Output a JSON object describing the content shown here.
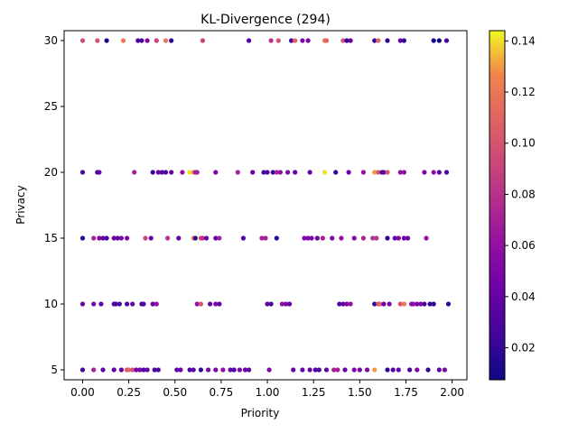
{
  "chart_data": {
    "type": "scatter",
    "title": "KL-Divergence (294)",
    "xlabel": "Priority",
    "ylabel": "Privacy",
    "xlim": [
      -0.1,
      2.08
    ],
    "ylim": [
      4.25,
      30.75
    ],
    "xticks": [
      0.0,
      0.25,
      0.5,
      0.75,
      1.0,
      1.25,
      1.5,
      1.75,
      2.0
    ],
    "xtick_labels": [
      "0.00",
      "0.25",
      "0.50",
      "0.75",
      "1.00",
      "1.25",
      "1.50",
      "1.75",
      "2.00"
    ],
    "yticks": [
      5,
      10,
      15,
      20,
      25,
      30
    ],
    "ytick_labels": [
      "5",
      "10",
      "15",
      "20",
      "25",
      "30"
    ],
    "grid": false,
    "colormap": "plasma",
    "colorbar": {
      "vmin": 0.0075,
      "vmax": 0.144,
      "ticks": [
        0.02,
        0.04,
        0.06,
        0.08,
        0.1,
        0.12,
        0.14
      ],
      "tick_labels": [
        "0.02",
        "0.04",
        "0.06",
        "0.08",
        "0.10",
        "0.12",
        "0.14"
      ]
    },
    "points": [
      {
        "x": 0.0,
        "y": 30,
        "c": 0.095
      },
      {
        "x": 0.08,
        "y": 30,
        "c": 0.1
      },
      {
        "x": 0.13,
        "y": 30,
        "c": 0.01
      },
      {
        "x": 0.22,
        "y": 30,
        "c": 0.12
      },
      {
        "x": 0.3,
        "y": 30,
        "c": 0.03
      },
      {
        "x": 0.32,
        "y": 30,
        "c": 0.03
      },
      {
        "x": 0.35,
        "y": 30,
        "c": 0.05
      },
      {
        "x": 0.4,
        "y": 30,
        "c": 0.09
      },
      {
        "x": 0.45,
        "y": 30,
        "c": 0.12
      },
      {
        "x": 0.48,
        "y": 30,
        "c": 0.02
      },
      {
        "x": 0.65,
        "y": 30,
        "c": 0.09
      },
      {
        "x": 0.9,
        "y": 30,
        "c": 0.03
      },
      {
        "x": 1.02,
        "y": 30,
        "c": 0.08
      },
      {
        "x": 1.06,
        "y": 30,
        "c": 0.1
      },
      {
        "x": 1.13,
        "y": 30,
        "c": 0.03
      },
      {
        "x": 1.15,
        "y": 30,
        "c": 0.11
      },
      {
        "x": 1.19,
        "y": 30,
        "c": 0.05
      },
      {
        "x": 1.22,
        "y": 30,
        "c": 0.05
      },
      {
        "x": 1.31,
        "y": 30,
        "c": 0.12
      },
      {
        "x": 1.32,
        "y": 30,
        "c": 0.11
      },
      {
        "x": 1.41,
        "y": 30,
        "c": 0.1
      },
      {
        "x": 1.43,
        "y": 30,
        "c": 0.02
      },
      {
        "x": 1.45,
        "y": 30,
        "c": 0.04
      },
      {
        "x": 1.58,
        "y": 30,
        "c": 0.02
      },
      {
        "x": 1.6,
        "y": 30,
        "c": 0.11
      },
      {
        "x": 1.65,
        "y": 30,
        "c": 0.02
      },
      {
        "x": 1.72,
        "y": 30,
        "c": 0.04
      },
      {
        "x": 1.74,
        "y": 30,
        "c": 0.02
      },
      {
        "x": 1.9,
        "y": 30,
        "c": 0.01
      },
      {
        "x": 1.93,
        "y": 30,
        "c": 0.01
      },
      {
        "x": 1.97,
        "y": 30,
        "c": 0.03
      },
      {
        "x": 0.0,
        "y": 20,
        "c": 0.03
      },
      {
        "x": 0.08,
        "y": 20,
        "c": 0.03
      },
      {
        "x": 0.09,
        "y": 20,
        "c": 0.04
      },
      {
        "x": 0.28,
        "y": 20,
        "c": 0.07
      },
      {
        "x": 0.38,
        "y": 20,
        "c": 0.02
      },
      {
        "x": 0.41,
        "y": 20,
        "c": 0.04
      },
      {
        "x": 0.43,
        "y": 20,
        "c": 0.03
      },
      {
        "x": 0.45,
        "y": 20,
        "c": 0.03
      },
      {
        "x": 0.48,
        "y": 20,
        "c": 0.04
      },
      {
        "x": 0.54,
        "y": 20,
        "c": 0.06
      },
      {
        "x": 0.58,
        "y": 20,
        "c": 0.14
      },
      {
        "x": 0.6,
        "y": 20,
        "c": 0.13
      },
      {
        "x": 0.61,
        "y": 20,
        "c": 0.07
      },
      {
        "x": 0.62,
        "y": 20,
        "c": 0.07
      },
      {
        "x": 0.72,
        "y": 20,
        "c": 0.05
      },
      {
        "x": 0.84,
        "y": 20,
        "c": 0.07
      },
      {
        "x": 0.92,
        "y": 20,
        "c": 0.04
      },
      {
        "x": 0.98,
        "y": 20,
        "c": 0.03
      },
      {
        "x": 1.0,
        "y": 20,
        "c": 0.03
      },
      {
        "x": 1.03,
        "y": 20,
        "c": 0.02
      },
      {
        "x": 1.05,
        "y": 20,
        "c": 0.07
      },
      {
        "x": 1.07,
        "y": 20,
        "c": 0.06
      },
      {
        "x": 1.11,
        "y": 20,
        "c": 0.05
      },
      {
        "x": 1.15,
        "y": 20,
        "c": 0.04
      },
      {
        "x": 1.23,
        "y": 20,
        "c": 0.04
      },
      {
        "x": 1.31,
        "y": 20,
        "c": 0.14
      },
      {
        "x": 1.37,
        "y": 20,
        "c": 0.02
      },
      {
        "x": 1.44,
        "y": 20,
        "c": 0.04
      },
      {
        "x": 1.52,
        "y": 20,
        "c": 0.06
      },
      {
        "x": 1.58,
        "y": 20,
        "c": 0.13
      },
      {
        "x": 1.6,
        "y": 20,
        "c": 0.1
      },
      {
        "x": 1.62,
        "y": 20,
        "c": 0.03
      },
      {
        "x": 1.63,
        "y": 20,
        "c": 0.03
      },
      {
        "x": 1.65,
        "y": 20,
        "c": 0.1
      },
      {
        "x": 1.72,
        "y": 20,
        "c": 0.06
      },
      {
        "x": 1.74,
        "y": 20,
        "c": 0.06
      },
      {
        "x": 1.85,
        "y": 20,
        "c": 0.05
      },
      {
        "x": 1.9,
        "y": 20,
        "c": 0.06
      },
      {
        "x": 1.93,
        "y": 20,
        "c": 0.04
      },
      {
        "x": 1.97,
        "y": 20,
        "c": 0.03
      },
      {
        "x": 0.0,
        "y": 15,
        "c": 0.02
      },
      {
        "x": 0.06,
        "y": 15,
        "c": 0.07
      },
      {
        "x": 0.09,
        "y": 15,
        "c": 0.05
      },
      {
        "x": 0.11,
        "y": 15,
        "c": 0.04
      },
      {
        "x": 0.13,
        "y": 15,
        "c": 0.03
      },
      {
        "x": 0.17,
        "y": 15,
        "c": 0.04
      },
      {
        "x": 0.19,
        "y": 15,
        "c": 0.04
      },
      {
        "x": 0.21,
        "y": 15,
        "c": 0.05
      },
      {
        "x": 0.24,
        "y": 15,
        "c": 0.05
      },
      {
        "x": 0.34,
        "y": 15,
        "c": 0.09
      },
      {
        "x": 0.37,
        "y": 15,
        "c": 0.04
      },
      {
        "x": 0.46,
        "y": 15,
        "c": 0.08
      },
      {
        "x": 0.52,
        "y": 15,
        "c": 0.04
      },
      {
        "x": 0.6,
        "y": 15,
        "c": 0.13
      },
      {
        "x": 0.61,
        "y": 15,
        "c": 0.02
      },
      {
        "x": 0.64,
        "y": 15,
        "c": 0.1
      },
      {
        "x": 0.65,
        "y": 15,
        "c": 0.08
      },
      {
        "x": 0.67,
        "y": 15,
        "c": 0.04
      },
      {
        "x": 0.72,
        "y": 15,
        "c": 0.04
      },
      {
        "x": 0.74,
        "y": 15,
        "c": 0.07
      },
      {
        "x": 0.87,
        "y": 15,
        "c": 0.03
      },
      {
        "x": 0.97,
        "y": 15,
        "c": 0.07
      },
      {
        "x": 0.99,
        "y": 15,
        "c": 0.07
      },
      {
        "x": 1.05,
        "y": 15,
        "c": 0.02
      },
      {
        "x": 1.2,
        "y": 15,
        "c": 0.05
      },
      {
        "x": 1.22,
        "y": 15,
        "c": 0.05
      },
      {
        "x": 1.24,
        "y": 15,
        "c": 0.05
      },
      {
        "x": 1.27,
        "y": 15,
        "c": 0.04
      },
      {
        "x": 1.3,
        "y": 15,
        "c": 0.07
      },
      {
        "x": 1.35,
        "y": 15,
        "c": 0.05
      },
      {
        "x": 1.4,
        "y": 15,
        "c": 0.06
      },
      {
        "x": 1.47,
        "y": 15,
        "c": 0.05
      },
      {
        "x": 1.52,
        "y": 15,
        "c": 0.07
      },
      {
        "x": 1.57,
        "y": 15,
        "c": 0.08
      },
      {
        "x": 1.59,
        "y": 15,
        "c": 0.08
      },
      {
        "x": 1.65,
        "y": 15,
        "c": 0.02
      },
      {
        "x": 1.69,
        "y": 15,
        "c": 0.04
      },
      {
        "x": 1.71,
        "y": 15,
        "c": 0.05
      },
      {
        "x": 1.74,
        "y": 15,
        "c": 0.04
      },
      {
        "x": 1.76,
        "y": 15,
        "c": 0.04
      },
      {
        "x": 1.86,
        "y": 15,
        "c": 0.06
      },
      {
        "x": 0.0,
        "y": 10,
        "c": 0.04
      },
      {
        "x": 0.06,
        "y": 10,
        "c": 0.05
      },
      {
        "x": 0.1,
        "y": 10,
        "c": 0.04
      },
      {
        "x": 0.17,
        "y": 10,
        "c": 0.03
      },
      {
        "x": 0.18,
        "y": 10,
        "c": 0.03
      },
      {
        "x": 0.2,
        "y": 10,
        "c": 0.03
      },
      {
        "x": 0.24,
        "y": 10,
        "c": 0.03
      },
      {
        "x": 0.27,
        "y": 10,
        "c": 0.04
      },
      {
        "x": 0.32,
        "y": 10,
        "c": 0.03
      },
      {
        "x": 0.33,
        "y": 10,
        "c": 0.03
      },
      {
        "x": 0.38,
        "y": 10,
        "c": 0.04
      },
      {
        "x": 0.4,
        "y": 10,
        "c": 0.06
      },
      {
        "x": 0.62,
        "y": 10,
        "c": 0.06
      },
      {
        "x": 0.64,
        "y": 10,
        "c": 0.1
      },
      {
        "x": 0.69,
        "y": 10,
        "c": 0.04
      },
      {
        "x": 0.72,
        "y": 10,
        "c": 0.05
      },
      {
        "x": 0.74,
        "y": 10,
        "c": 0.04
      },
      {
        "x": 1.0,
        "y": 10,
        "c": 0.04
      },
      {
        "x": 1.02,
        "y": 10,
        "c": 0.03
      },
      {
        "x": 1.08,
        "y": 10,
        "c": 0.06
      },
      {
        "x": 1.1,
        "y": 10,
        "c": 0.05
      },
      {
        "x": 1.12,
        "y": 10,
        "c": 0.04
      },
      {
        "x": 1.39,
        "y": 10,
        "c": 0.03
      },
      {
        "x": 1.41,
        "y": 10,
        "c": 0.04
      },
      {
        "x": 1.43,
        "y": 10,
        "c": 0.05
      },
      {
        "x": 1.45,
        "y": 10,
        "c": 0.06
      },
      {
        "x": 1.58,
        "y": 10,
        "c": 0.02
      },
      {
        "x": 1.6,
        "y": 10,
        "c": 0.1
      },
      {
        "x": 1.61,
        "y": 10,
        "c": 0.11
      },
      {
        "x": 1.63,
        "y": 10,
        "c": 0.04
      },
      {
        "x": 1.66,
        "y": 10,
        "c": 0.05
      },
      {
        "x": 1.72,
        "y": 10,
        "c": 0.1
      },
      {
        "x": 1.74,
        "y": 10,
        "c": 0.12
      },
      {
        "x": 1.78,
        "y": 10,
        "c": 0.06
      },
      {
        "x": 1.79,
        "y": 10,
        "c": 0.06
      },
      {
        "x": 1.81,
        "y": 10,
        "c": 0.05
      },
      {
        "x": 1.83,
        "y": 10,
        "c": 0.05
      },
      {
        "x": 1.85,
        "y": 10,
        "c": 0.03
      },
      {
        "x": 1.88,
        "y": 10,
        "c": 0.02
      },
      {
        "x": 1.9,
        "y": 10,
        "c": 0.02
      },
      {
        "x": 1.98,
        "y": 10,
        "c": 0.02
      },
      {
        "x": 0.0,
        "y": 5,
        "c": 0.03
      },
      {
        "x": 0.06,
        "y": 5,
        "c": 0.07
      },
      {
        "x": 0.11,
        "y": 5,
        "c": 0.04
      },
      {
        "x": 0.17,
        "y": 5,
        "c": 0.04
      },
      {
        "x": 0.21,
        "y": 5,
        "c": 0.04
      },
      {
        "x": 0.24,
        "y": 5,
        "c": 0.1
      },
      {
        "x": 0.25,
        "y": 5,
        "c": 0.11
      },
      {
        "x": 0.27,
        "y": 5,
        "c": 0.1
      },
      {
        "x": 0.29,
        "y": 5,
        "c": 0.04
      },
      {
        "x": 0.31,
        "y": 5,
        "c": 0.05
      },
      {
        "x": 0.33,
        "y": 5,
        "c": 0.03
      },
      {
        "x": 0.35,
        "y": 5,
        "c": 0.04
      },
      {
        "x": 0.39,
        "y": 5,
        "c": 0.03
      },
      {
        "x": 0.41,
        "y": 5,
        "c": 0.03
      },
      {
        "x": 0.51,
        "y": 5,
        "c": 0.04
      },
      {
        "x": 0.53,
        "y": 5,
        "c": 0.04
      },
      {
        "x": 0.58,
        "y": 5,
        "c": 0.03
      },
      {
        "x": 0.6,
        "y": 5,
        "c": 0.04
      },
      {
        "x": 0.64,
        "y": 5,
        "c": 0.02
      },
      {
        "x": 0.68,
        "y": 5,
        "c": 0.05
      },
      {
        "x": 0.72,
        "y": 5,
        "c": 0.05
      },
      {
        "x": 0.76,
        "y": 5,
        "c": 0.06
      },
      {
        "x": 0.8,
        "y": 5,
        "c": 0.04
      },
      {
        "x": 0.82,
        "y": 5,
        "c": 0.03
      },
      {
        "x": 0.85,
        "y": 5,
        "c": 0.05
      },
      {
        "x": 0.88,
        "y": 5,
        "c": 0.04
      },
      {
        "x": 0.9,
        "y": 5,
        "c": 0.04
      },
      {
        "x": 1.01,
        "y": 5,
        "c": 0.05
      },
      {
        "x": 1.14,
        "y": 5,
        "c": 0.04
      },
      {
        "x": 1.19,
        "y": 5,
        "c": 0.04
      },
      {
        "x": 1.23,
        "y": 5,
        "c": 0.04
      },
      {
        "x": 1.26,
        "y": 5,
        "c": 0.03
      },
      {
        "x": 1.28,
        "y": 5,
        "c": 0.03
      },
      {
        "x": 1.32,
        "y": 5,
        "c": 0.04
      },
      {
        "x": 1.36,
        "y": 5,
        "c": 0.07
      },
      {
        "x": 1.38,
        "y": 5,
        "c": 0.07
      },
      {
        "x": 1.42,
        "y": 5,
        "c": 0.04
      },
      {
        "x": 1.47,
        "y": 5,
        "c": 0.05
      },
      {
        "x": 1.5,
        "y": 5,
        "c": 0.05
      },
      {
        "x": 1.54,
        "y": 5,
        "c": 0.05
      },
      {
        "x": 1.58,
        "y": 5,
        "c": 0.13
      },
      {
        "x": 1.65,
        "y": 5,
        "c": 0.02
      },
      {
        "x": 1.68,
        "y": 5,
        "c": 0.03
      },
      {
        "x": 1.71,
        "y": 5,
        "c": 0.04
      },
      {
        "x": 1.77,
        "y": 5,
        "c": 0.03
      },
      {
        "x": 1.81,
        "y": 5,
        "c": 0.05
      },
      {
        "x": 1.87,
        "y": 5,
        "c": 0.02
      },
      {
        "x": 1.93,
        "y": 5,
        "c": 0.04
      },
      {
        "x": 1.96,
        "y": 5,
        "c": 0.05
      }
    ]
  }
}
